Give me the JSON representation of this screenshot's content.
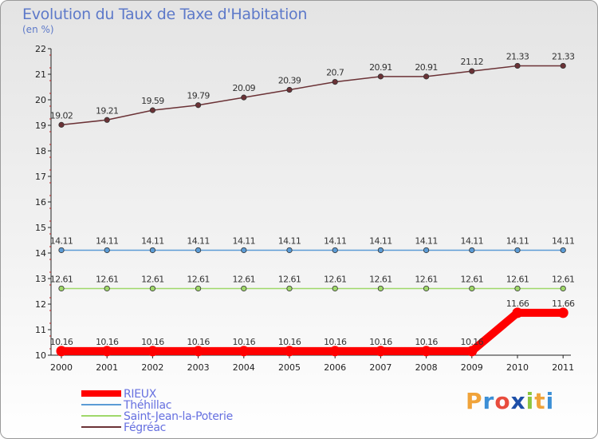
{
  "title": "Evolution du Taux de Taxe d'Habitation",
  "unit": "(en %)",
  "logo": {
    "text": "Proxiti",
    "colors": [
      "#f0a33a",
      "#3c8fd6",
      "#e84c3d",
      "#1d4fa8",
      "#8cc63f",
      "#f0a33a",
      "#3c8fd6"
    ]
  },
  "chart_data": {
    "type": "line",
    "title": "Evolution du Taux de Taxe d'Habitation",
    "ylabel": "(en %)",
    "xlabel": "",
    "categories": [
      "2000",
      "2001",
      "2002",
      "2003",
      "2004",
      "2005",
      "2006",
      "2007",
      "2008",
      "2009",
      "2010",
      "2011"
    ],
    "ylim": [
      10,
      22
    ],
    "yticks": [
      10,
      11,
      12,
      13,
      14,
      15,
      16,
      17,
      18,
      19,
      20,
      21,
      22
    ],
    "grid": false,
    "legend_position": "bottom-left",
    "series": [
      {
        "name": "RIEUX",
        "color": "#ff0000",
        "width": "thick",
        "values": [
          10.16,
          10.16,
          10.16,
          10.16,
          10.16,
          10.16,
          10.16,
          10.16,
          10.16,
          10.16,
          11.66,
          11.66
        ],
        "labels": [
          "10.16",
          "10.16",
          "10.16",
          "10.16",
          "10.16",
          "10.16",
          "10.16",
          "10.16",
          "10.16",
          "10.16",
          "11.66",
          "11.66"
        ]
      },
      {
        "name": "Théhillac",
        "color": "#5b9bd5",
        "width": "thin",
        "values": [
          14.11,
          14.11,
          14.11,
          14.11,
          14.11,
          14.11,
          14.11,
          14.11,
          14.11,
          14.11,
          14.11,
          14.11
        ],
        "labels": [
          "14.11",
          "14.11",
          "14.11",
          "14.11",
          "14.11",
          "14.11",
          "14.11",
          "14.11",
          "14.11",
          "14.11",
          "14.11",
          "14.11"
        ]
      },
      {
        "name": "Saint-Jean-la-Poterie",
        "color": "#9fd86a",
        "width": "thin",
        "values": [
          12.61,
          12.61,
          12.61,
          12.61,
          12.61,
          12.61,
          12.61,
          12.61,
          12.61,
          12.61,
          12.61,
          12.61
        ],
        "labels": [
          "12.61",
          "12.61",
          "12.61",
          "12.61",
          "12.61",
          "12.61",
          "12.61",
          "12.61",
          "12.61",
          "12.61",
          "12.61",
          "12.61"
        ]
      },
      {
        "name": "Fégréac",
        "color": "#6b3236",
        "width": "thin",
        "values": [
          19.02,
          19.21,
          19.59,
          19.79,
          20.09,
          20.39,
          20.7,
          20.91,
          20.91,
          21.12,
          21.33,
          21.33
        ],
        "labels": [
          "19.02",
          "19.21",
          "19.59",
          "19.79",
          "20.09",
          "20.39",
          "20.7",
          "20.91",
          "20.91",
          "21.12",
          "21.33",
          "21.33"
        ]
      }
    ]
  }
}
